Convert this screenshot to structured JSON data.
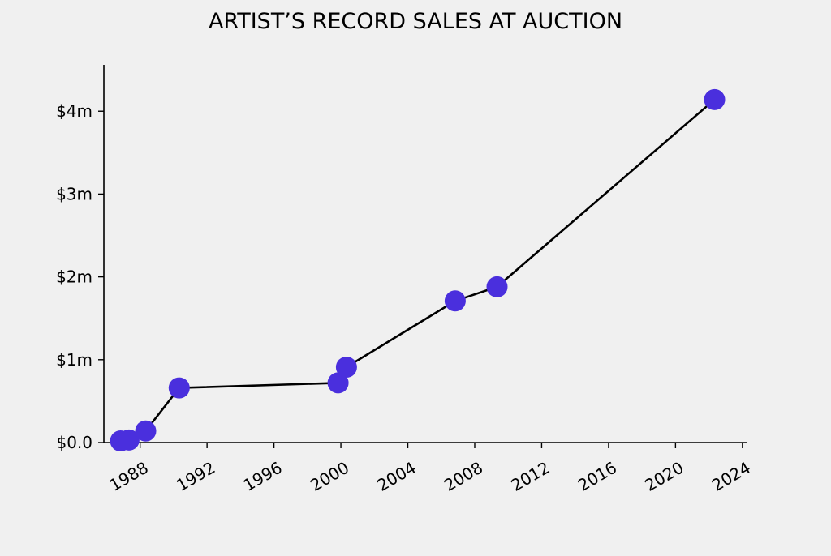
{
  "chart_data": {
    "type": "line",
    "title": "ARTIST’S RECORD SALES AT AUCTION",
    "xlabel": "",
    "ylabel": "",
    "x_is_date": true,
    "x_ticks": [
      "1988",
      "1992",
      "1996",
      "2000",
      "2004",
      "2008",
      "2012",
      "2016",
      "2020",
      "2024"
    ],
    "y_ticks": [
      "$0.0",
      "$1m",
      "$2m",
      "$3m",
      "$4m"
    ],
    "y_tick_values": [
      0,
      1,
      2,
      3,
      4
    ],
    "y_unit": "$m",
    "xlim": [
      "1985-11-01",
      "2024-04-01"
    ],
    "ylim": [
      0,
      4.56
    ],
    "grid": false,
    "legend": "none",
    "series": [
      {
        "x": [
          "1986-11-01",
          "1987-05-01",
          "1988-05-01",
          "1990-05-01",
          "1999-11-01",
          "2000-05-01",
          "2006-11-01",
          "2009-05-01",
          "2022-05-01"
        ],
        "y": [
          0.02,
          0.03,
          0.14,
          0.66,
          0.72,
          0.91,
          1.71,
          1.88,
          4.14
        ]
      }
    ],
    "colors": {
      "line": "#000000",
      "marker": "#4a2fdd",
      "background": "#f0f0f0"
    }
  }
}
